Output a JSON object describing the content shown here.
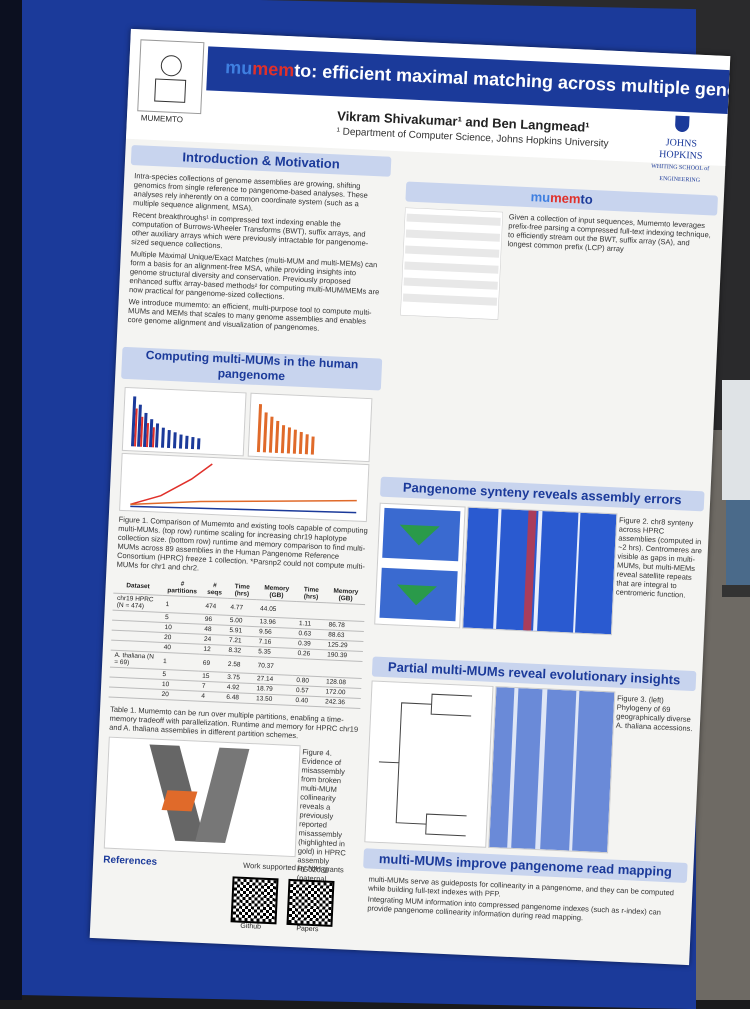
{
  "poster": {
    "logo_label": "MUMEMTO",
    "title_prefix": "mu",
    "title_mid": "mem",
    "title_rest": "to: efficient maximal matching across multiple genomes",
    "authors": "Vikram Shivakumar¹ and Ben Langmead¹",
    "department": "¹ Department of Computer Science, Johns Hopkins University",
    "institution": "JOHNS HOPKINS",
    "school": "WHITING SCHOOL of ENGINEERING",
    "sections": {
      "intro": "Introduction & Motivation",
      "mumemto": "mumemto",
      "computing": "Computing multi-MUMs in the human pangenome",
      "synteny": "Pangenome synteny reveals assembly errors",
      "partial": "Partial multi-MUMs reveal evolutionary insights",
      "readmap": "multi-MUMs improve pangenome read mapping",
      "references": "References"
    },
    "intro_bullets": [
      "Intra-species collections of genome assemblies are growing, shifting genomics from single reference to pangenome-based analyses. These analyses rely inherently on a common coordinate system (such as a multiple sequence alignment, MSA).",
      "Recent breakthroughs¹ in compressed text indexing enable the computation of Burrows-Wheeler Transforms (BWT), suffix arrays, and other auxiliary arrays which were previously intractable for pangenome-sized sequence collections.",
      "Multiple Maximal Unique/Exact Matches (multi-MUM and multi-MEMs) can form a basis for an alignment-free MSA, while providing insights into genome structural diversity and conservation. Previously proposed enhanced suffix array-based methods² for computing multi-MUM/MEMs are now practical for pangenome-sized collections.",
      "We introduce mumemto: an efficient, multi-purpose tool to compute multi-MUMs and MEMs that scales to many genome assemblies and enables core genome alignment and visualization of pangenomes."
    ],
    "mumemto_text": "Given a collection of input sequences, Mumemto leverages prefix-free parsing a compressed full-text indexing technique, to efficiently stream out the BWT, suffix array (SA), and longest common prefix (LCP) array",
    "fig1_caption": "Figure 1. Comparison of Mumemto and existing tools capable of computing multi-MUMs. (top row) runtime scaling for increasing chr19 haplotype collection size. (bottom row) runtime and memory comparison to find multi-MUMs across 89 assemblies in the Human Pangenome Reference Consortium (HPRC) freeze 1 collection. *Parsnp2 could not compute multi-MUMs for chr1 and chr2.",
    "table_headers": [
      "Dataset",
      "# partitions",
      "# seqs",
      "Time (hrs)",
      "Memory (GB)",
      "Time (hrs)",
      "Memory (GB)"
    ],
    "table_rows": [
      [
        "chr19 HPRC (N = 474)",
        "1",
        "474",
        "4.77",
        "44.05",
        "",
        ""
      ],
      [
        "",
        "5",
        "96",
        "5.00",
        "13.96",
        "1.11",
        "86.78"
      ],
      [
        "",
        "10",
        "48",
        "5.91",
        "9.56",
        "0.63",
        "88.63"
      ],
      [
        "",
        "20",
        "24",
        "7.21",
        "7.16",
        "0.39",
        "125.29"
      ],
      [
        "",
        "40",
        "12",
        "8.32",
        "5.35",
        "0.26",
        "190.39"
      ],
      [
        "A. thaliana (N = 69)",
        "1",
        "69",
        "2.58",
        "70.37",
        "",
        ""
      ],
      [
        "",
        "5",
        "15",
        "3.75",
        "27.14",
        "0.80",
        "128.08"
      ],
      [
        "",
        "10",
        "7",
        "4.92",
        "18.79",
        "0.57",
        "172.00"
      ],
      [
        "",
        "20",
        "4",
        "6.48",
        "13.50",
        "0.40",
        "242.36"
      ]
    ],
    "table_caption": "Table 1. Mumemto can be run over multiple partitions, enabling a time-memory tradeoff with parallelization. Runtime and memory for HPRC chr19 and A. thaliana assemblies in different partition schemes.",
    "fig4_caption": "Figure 4. Evidence of misassembly from broken multi-MUM collinearity reveals a previously reported misassembly (highlighted in gold) in HPRC assembly HG02080 (paternal haplotype).",
    "fig2_caption": "Figure 2. chr8 synteny across HPRC assemblies (computed in ~2 hrs). Centromeres are visible as gaps in multi-MUMs, but multi-MEMs reveal satellite repeats that are integral to centromeric function.",
    "fig3_caption": "Figure 3. (left) Phylogeny of 69 geographically diverse A. thaliana accessions.",
    "readmap_bullets": [
      "multi-MUMs serve as guideposts for collinearity in a pangenome, and they can be computed while building full-text indexes with PFP.",
      "Integrating MUM information into compressed pangenome indexes (such as r-index) can provide pangenome collinearity information during read mapping."
    ],
    "qr_labels": [
      "Github",
      "Papers"
    ],
    "funding": "Work supported by NIH grants"
  },
  "colors": {
    "board": "#1b3a9a",
    "accent_red": "#e0302a",
    "accent_blue": "#3f7fe0",
    "section": "#c8d4ee"
  }
}
